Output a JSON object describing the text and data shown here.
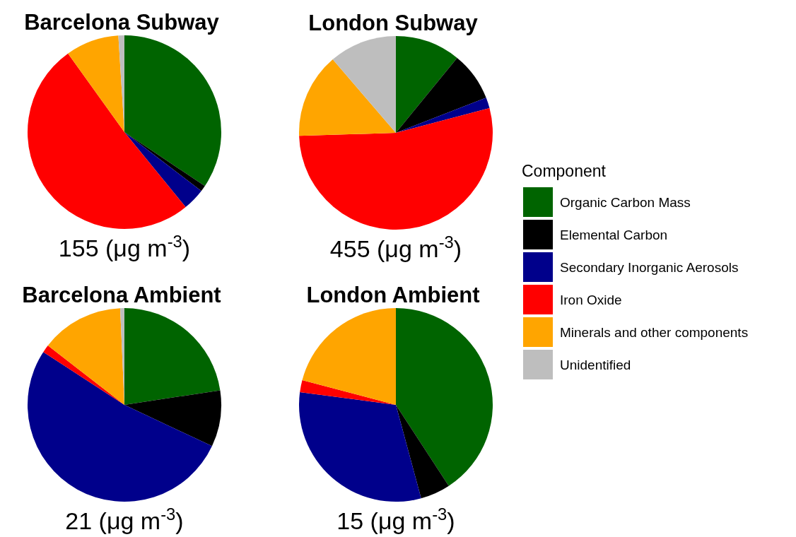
{
  "chart_data": [
    {
      "type": "pie",
      "title": "Barcelona Subway",
      "xlabel": "155 (μg m$^{-3}$)",
      "legend": "right",
      "legend_title": "Component",
      "categories": [
        "Organic Carbon Mass",
        "Elemental Carbon",
        "Secondary Inorganic Aerosols",
        "Iron Oxide",
        "Minerals and other components",
        "Unidentified"
      ],
      "values": [
        34.4,
        1,
        3.7,
        51,
        8.9,
        1
      ],
      "colors": [
        "#006400",
        "#000000",
        "#00008b",
        "#ff0000",
        "#ffa500",
        "#bebebe"
      ]
    },
    {
      "type": "pie",
      "title": "London Subway",
      "xlabel": "455 (μg m$^{-3}$)",
      "categories": [
        null,
        null,
        null,
        null,
        null,
        null
      ],
      "values": [
        10.9,
        8.2,
        1.8,
        53.6,
        14.2,
        11.3
      ],
      "colors": [
        "#006400",
        "#000000",
        "#00008b",
        "#ff0000",
        "#ffa500",
        "#bebebe"
      ]
    },
    {
      "type": "pie",
      "title": "Barcelona Ambient",
      "xlabel": "21 (μg m$^{-3}$)",
      "categories": [
        null,
        null,
        null,
        null,
        null,
        null
      ],
      "values": [
        22.6,
        9.4,
        52.2,
        1.3,
        13.8,
        0.7
      ],
      "colors": [
        "#006400",
        "#000000",
        "#00008b",
        "#ff0000",
        "#ffa500",
        "#bebebe"
      ]
    },
    {
      "type": "pie",
      "title": "London Ambient",
      "xlabel": "15 (μg m$^{-3}$)",
      "categories": [
        null,
        null,
        null,
        null,
        null
      ],
      "values": [
        40.8,
        5,
        31.3,
        2,
        20.9
      ],
      "colors": [
        "#006400",
        "#000000",
        "#00008b",
        "#ff0000",
        "#ffa500"
      ]
    }
  ]
}
